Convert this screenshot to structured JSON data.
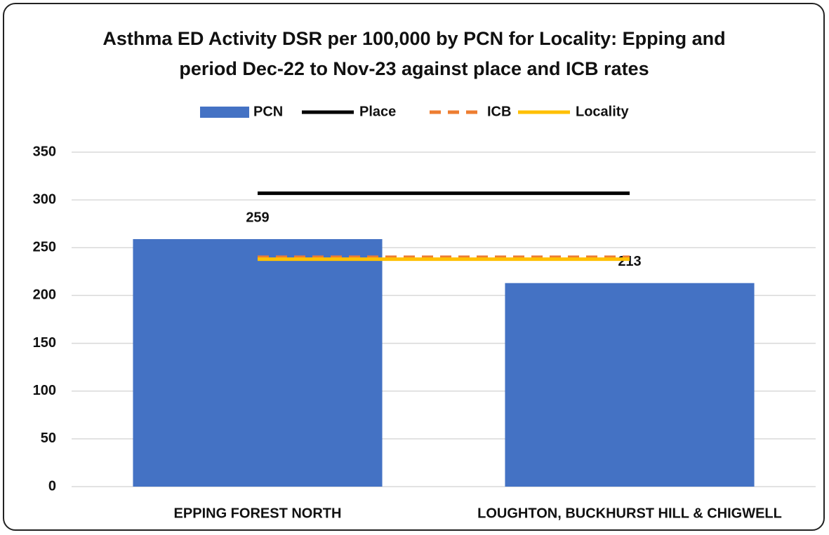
{
  "chart_data": {
    "type": "bar",
    "title": "Asthma ED Activity DSR per 100,000 by PCN for Locality: Epping and period Dec-22 to Nov-23 against place and ICB rates",
    "categories": [
      "EPPING FOREST NORTH",
      "LOUGHTON, BUCKHURST HILL & CHIGWELL"
    ],
    "series": [
      {
        "name": "PCN",
        "type": "bar",
        "color": "#4472c4",
        "values": [
          259,
          213
        ]
      },
      {
        "name": "Place",
        "type": "line",
        "color": "#000000",
        "values": [
          307,
          307
        ]
      },
      {
        "name": "ICB",
        "type": "line",
        "color": "#ed7d31",
        "dashed": true,
        "values": [
          240,
          240
        ]
      },
      {
        "name": "Locality",
        "type": "line",
        "color": "#ffc000",
        "values": [
          238,
          238
        ]
      }
    ],
    "ylim": [
      0,
      350
    ],
    "yticks": [
      0,
      50,
      100,
      150,
      200,
      250,
      300,
      350
    ],
    "grid": true,
    "legend": "top"
  }
}
